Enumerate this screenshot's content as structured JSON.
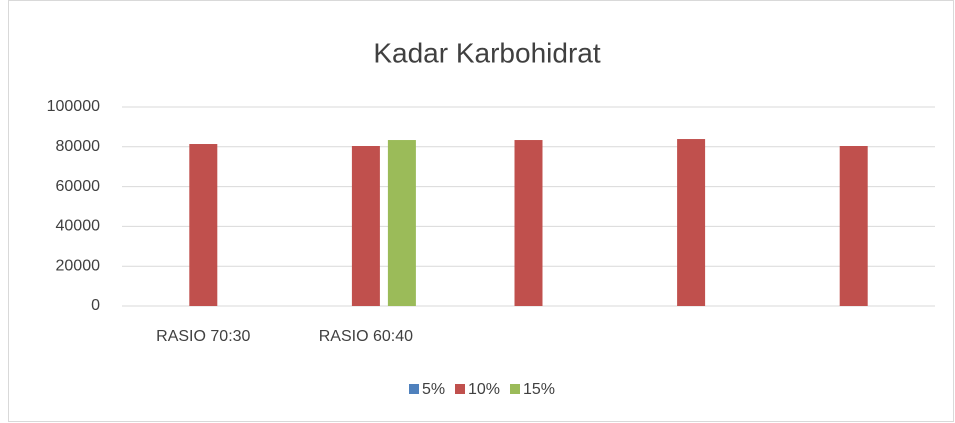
{
  "chart_data": {
    "type": "bar",
    "title": "Kadar Karbohidrat",
    "categories": [
      "RASIO 70:30",
      "RASIO 60:40",
      null,
      null,
      null
    ],
    "series": [
      {
        "name": "5%",
        "color": "#4f81bd",
        "values": [
          null,
          null,
          null,
          null,
          null
        ]
      },
      {
        "name": "10%",
        "color": "#c0504d",
        "values": [
          81400,
          80400,
          83400,
          83900,
          80400
        ]
      },
      {
        "name": "15%",
        "color": "#9bbb59",
        "values": [
          null,
          83400,
          null,
          null,
          null
        ]
      }
    ],
    "ylim": [
      0,
      100000
    ],
    "yticks": [
      0,
      20000,
      40000,
      60000,
      80000,
      100000
    ],
    "grid": true,
    "legend": "bottom"
  }
}
